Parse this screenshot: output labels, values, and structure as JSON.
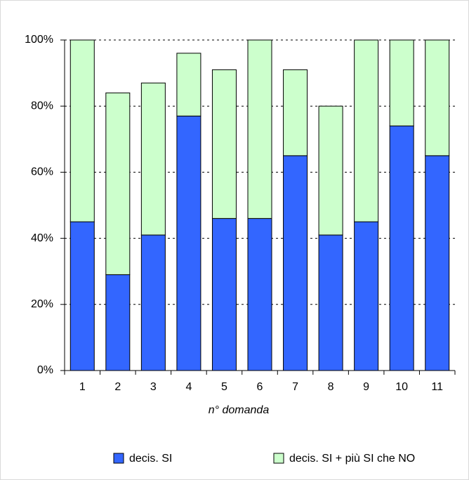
{
  "chart_data": {
    "type": "stacked-bar",
    "x_label": "n° domanda",
    "categories": [
      "1",
      "2",
      "3",
      "4",
      "5",
      "6",
      "7",
      "8",
      "9",
      "10",
      "11"
    ],
    "series": [
      {
        "name": "decis. SI",
        "color": "#3366ff",
        "values": [
          45,
          29,
          41,
          77,
          46,
          46,
          65,
          41,
          45,
          74,
          65
        ]
      },
      {
        "name": "decis. SI + più SI che NO",
        "color": "#ccffcc",
        "values": [
          55,
          55,
          46,
          19,
          45,
          54,
          26,
          39,
          55,
          26,
          35
        ]
      }
    ],
    "ylim": [
      0,
      100
    ],
    "yticks": [
      {
        "value": 0,
        "label": "0%"
      },
      {
        "value": 20,
        "label": "20%"
      },
      {
        "value": 40,
        "label": "40%"
      },
      {
        "value": 60,
        "label": "60%"
      },
      {
        "value": 80,
        "label": "80%"
      },
      {
        "value": 100,
        "label": "100%"
      }
    ],
    "grid": true,
    "legend": "bottom"
  }
}
